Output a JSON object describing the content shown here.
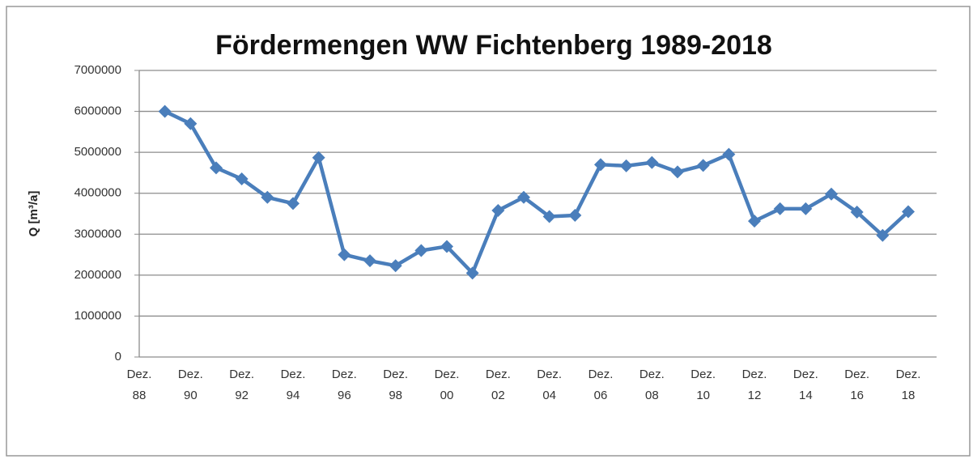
{
  "chart_data": {
    "type": "line",
    "title": "Fördermengen WW Fichtenberg 1989-2018",
    "y_label": "Q [m³/a]",
    "categories": [
      "Dez. 88",
      null,
      "Dez. 90",
      null,
      "Dez. 92",
      null,
      "Dez. 94",
      null,
      "Dez. 96",
      null,
      "Dez. 98",
      null,
      "Dez. 00",
      null,
      "Dez. 02",
      null,
      "Dez. 04",
      null,
      "Dez. 06",
      null,
      "Dez. 08",
      null,
      "Dez. 10",
      null,
      "Dez. 12",
      null,
      "Dez. 14",
      null,
      "Dez. 16",
      null,
      "Dez. 18"
    ],
    "series": [
      {
        "name": "Q",
        "color": "#4a7ebb",
        "values": [
          null,
          6000000,
          5700000,
          4620000,
          4350000,
          3900000,
          3750000,
          4870000,
          2500000,
          2350000,
          2230000,
          2600000,
          2700000,
          2050000,
          3580000,
          3900000,
          3430000,
          3460000,
          4700000,
          4670000,
          4750000,
          4520000,
          4680000,
          4950000,
          3320000,
          3620000,
          3620000,
          3980000,
          3540000,
          2970000,
          3550000
        ]
      }
    ],
    "ylim": [
      0,
      7000000
    ],
    "yticks": [
      0,
      1000000,
      2000000,
      3000000,
      4000000,
      5000000,
      6000000,
      7000000
    ],
    "grid": true
  }
}
